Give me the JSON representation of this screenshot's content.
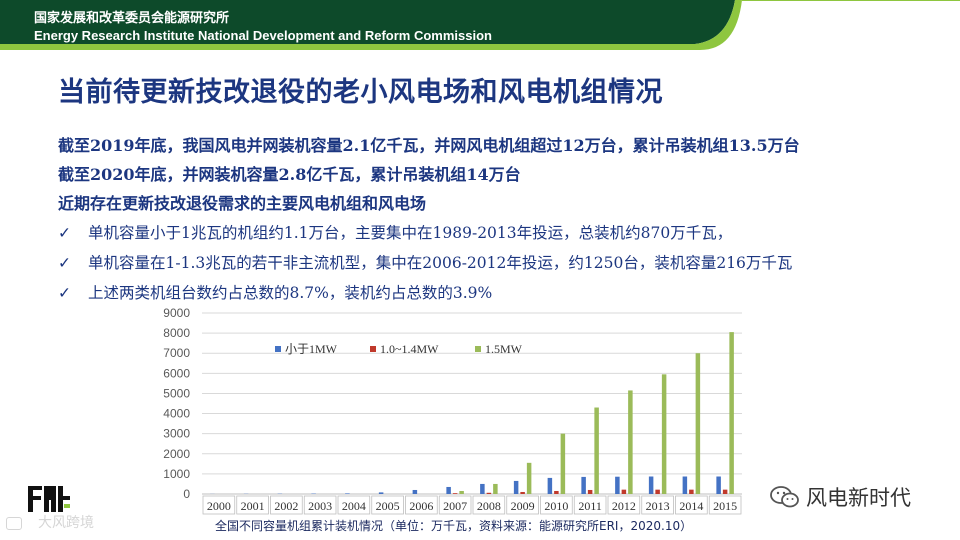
{
  "header": {
    "org_cn": "国家发展和改革委员会能源研究所",
    "org_en": "Energy Research Institute National Development and Reform Commission"
  },
  "slide": {
    "title": "当前待更新技改退役的老小风电场和风电机组情况",
    "lines": [
      "截至2019年底，我国风电并网装机容量2.1亿千瓦，并网风电机组超过12万台，累计吊装机组13.5万台",
      "截至2020年底，并网装机容量2.8亿千瓦，累计吊装机组14万台",
      "近期存在更新技改退役需求的主要风电机组和风电场"
    ],
    "bullets": [
      "单机容量小于1兆瓦的机组约1.1万台，主要集中在1989-2013年投运，总装机约870万千瓦，",
      "单机容量在1-1.3兆瓦的若干非主流机型，集中在2006-2012年投运，约1250台，装机容量216万千瓦",
      "上述两类机组台数约占总数的8.7%，装机约占总数的3.9%"
    ],
    "check_mark": "✓"
  },
  "chart_data": {
    "type": "bar",
    "categories": [
      "2000",
      "2001",
      "2002",
      "2003",
      "2004",
      "2005",
      "2006",
      "2007",
      "2008",
      "2009",
      "2010",
      "2011",
      "2012",
      "2013",
      "2014",
      "2015"
    ],
    "series": [
      {
        "name": "小于1MW",
        "color": "#4472c4",
        "values": [
          5,
          10,
          15,
          20,
          30,
          80,
          200,
          350,
          500,
          650,
          800,
          850,
          860,
          870,
          870,
          870
        ]
      },
      {
        "name": "1.0~1.4MW",
        "color": "#c0392b",
        "values": [
          0,
          0,
          0,
          0,
          0,
          0,
          0,
          40,
          60,
          100,
          150,
          200,
          216,
          216,
          216,
          216
        ]
      },
      {
        "name": "1.5MW",
        "color": "#9bbb59",
        "values": [
          0,
          0,
          0,
          0,
          0,
          0,
          0,
          150,
          500,
          1550,
          3000,
          4300,
          5150,
          5950,
          7000,
          8050
        ]
      }
    ],
    "ylim": [
      0,
      9000
    ],
    "yticks": [
      0,
      1000,
      2000,
      3000,
      4000,
      5000,
      6000,
      7000,
      8000,
      9000
    ],
    "grid": true,
    "legend_position": "top"
  },
  "caption": "全国不同容量机组累计装机情况（单位：万千瓦，资料来源：能源研究所ERI，2020.10）",
  "watermarks": {
    "left": "大风跨境",
    "right": "风电新时代"
  },
  "colors": {
    "header_green": "#0d4a2a",
    "title_blue": "#1c3680",
    "accent_light_green": "#8ec63f"
  }
}
